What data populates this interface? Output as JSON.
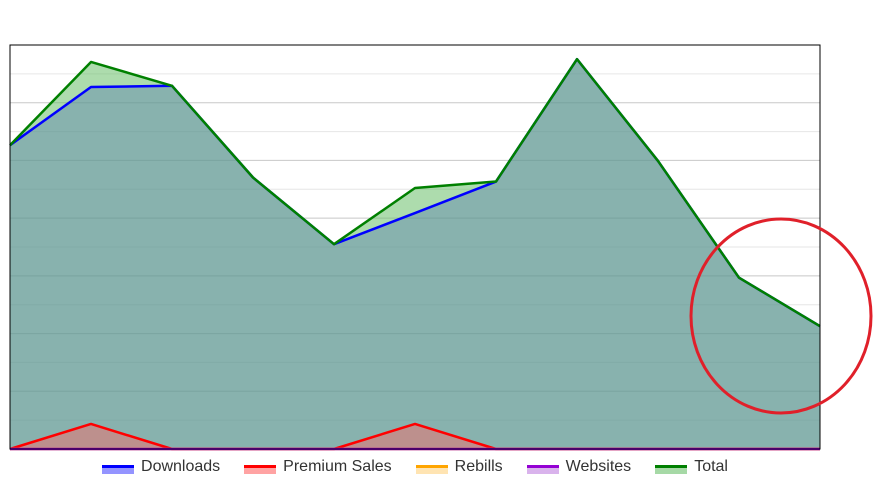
{
  "chart_data": {
    "type": "area",
    "x": [
      1,
      2,
      3,
      4,
      5,
      6,
      7,
      8,
      9,
      10,
      11
    ],
    "ylim": [
      0,
      100
    ],
    "grid": true,
    "legend_position": "bottom",
    "series": [
      {
        "name": "Downloads",
        "color": "#0000ff",
        "fill": "#4d4dff",
        "values": [
          75.2,
          89.6,
          89.9,
          67.2,
          50.7,
          58.4,
          66.2,
          96.5,
          71.3,
          42.4,
          30.4
        ]
      },
      {
        "name": "Premium Sales",
        "color": "#ff0000",
        "fill": "#ff6666",
        "values": [
          0,
          6.2,
          0,
          0,
          0,
          6.2,
          0,
          0,
          0,
          0,
          0
        ]
      },
      {
        "name": "Rebills",
        "color": "#ffa500",
        "fill": "#ffd27f",
        "values": [
          0,
          0,
          0,
          0,
          0,
          0,
          0,
          0,
          0,
          0,
          0
        ]
      },
      {
        "name": "Websites",
        "color": "#9400d3",
        "fill": "#c080e0",
        "values": [
          0,
          0,
          0,
          0,
          0,
          0,
          0,
          0,
          0,
          0,
          0
        ]
      },
      {
        "name": "Total",
        "color": "#008000",
        "fill": "#6abf6a",
        "values": [
          75.2,
          95.8,
          89.9,
          67.2,
          50.7,
          64.6,
          66.2,
          96.5,
          71.3,
          42.4,
          30.4
        ]
      }
    ]
  },
  "annotation": {
    "type": "circle",
    "color": "#e0202a"
  }
}
